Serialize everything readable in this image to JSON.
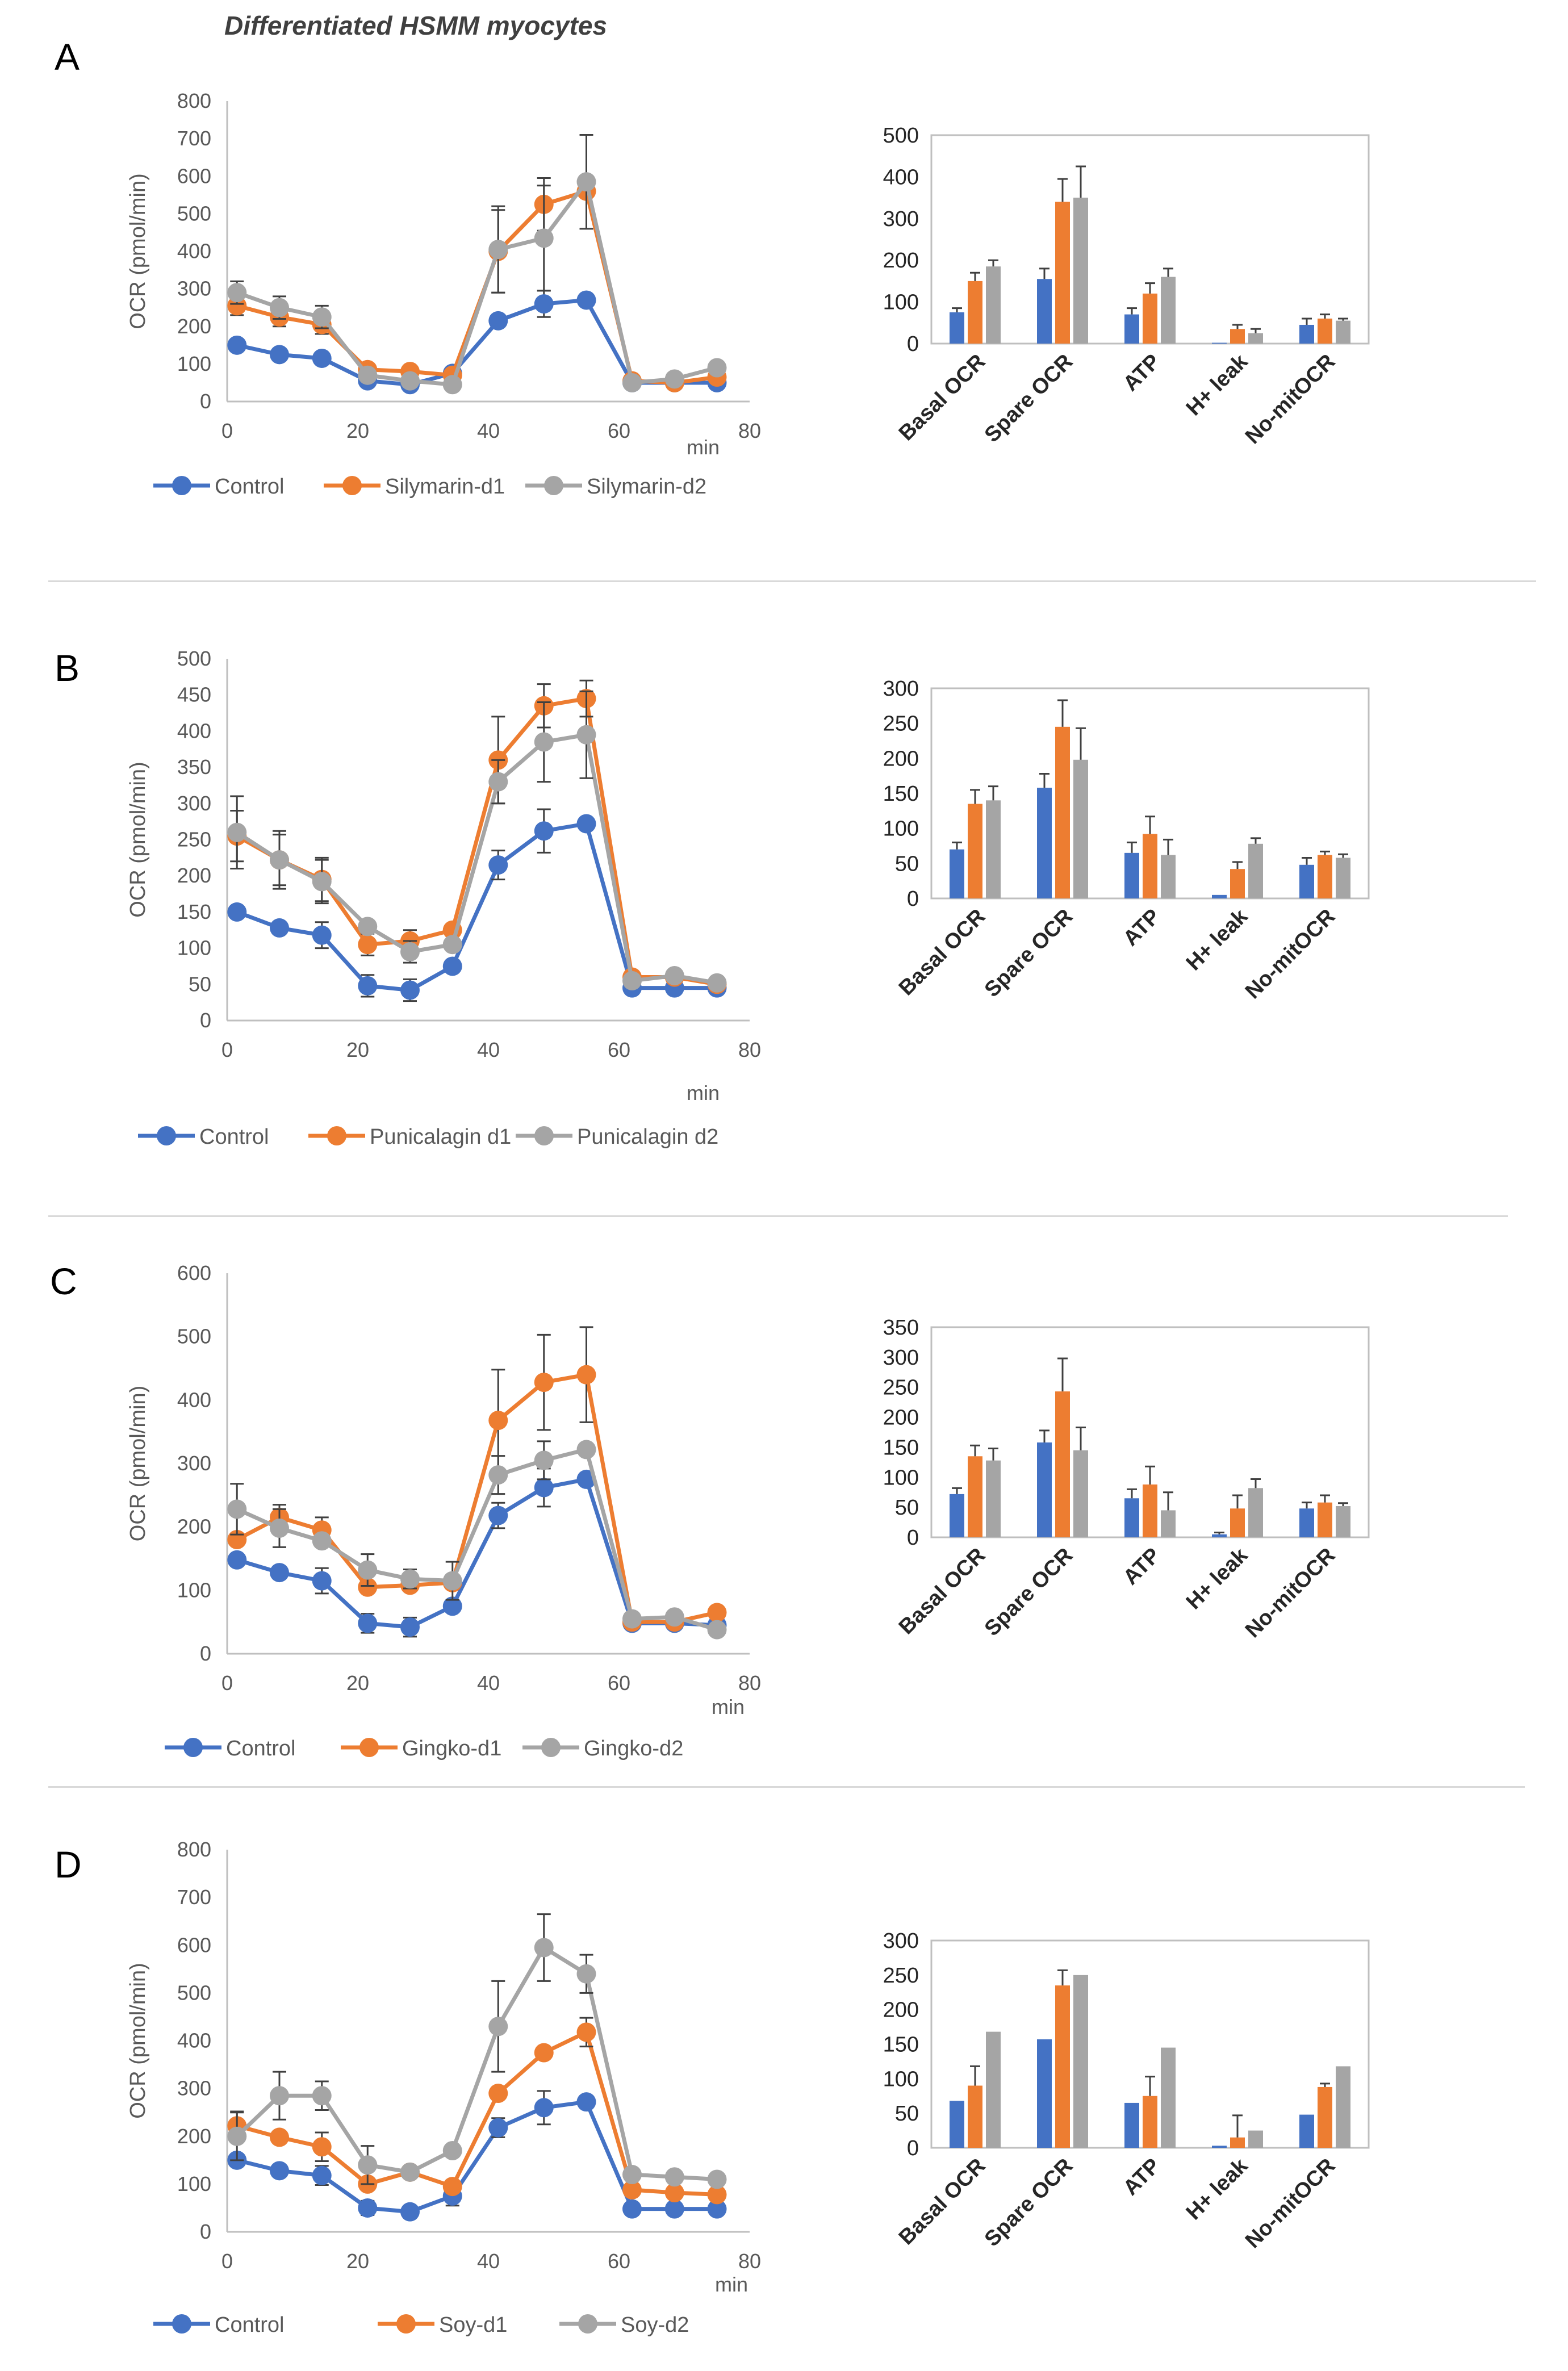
{
  "figure_title": "Differentiated HSMM myocytes",
  "colors": {
    "control": "#4472C4",
    "d1": "#ED7D31",
    "d2": "#A5A5A5",
    "axis": "#BFBFBF",
    "text": "#595959"
  },
  "chart_data": [
    {
      "panel": "A",
      "type": "line",
      "title": "",
      "ylabel": "OCR (pmol/min)",
      "xlabel": "min",
      "xlim": [
        0,
        80
      ],
      "ylim": [
        0,
        800
      ],
      "xticks": [
        0,
        20,
        40,
        60,
        80
      ],
      "yticks": [
        0,
        100,
        200,
        300,
        400,
        500,
        600,
        700,
        800
      ],
      "x": [
        1.5,
        8,
        14.5,
        21.5,
        28,
        34.5,
        41.5,
        48.5,
        55,
        62,
        68.5,
        75
      ],
      "series": [
        {
          "name": "Control",
          "values": [
            150,
            125,
            115,
            55,
            45,
            75,
            215,
            260,
            270,
            50,
            50,
            50
          ],
          "errors": [
            0,
            0,
            0,
            0,
            0,
            0,
            0,
            35,
            0,
            0,
            0,
            0
          ]
        },
        {
          "name": "Silymarin-d1",
          "values": [
            255,
            225,
            205,
            85,
            80,
            70,
            400,
            525,
            560,
            55,
            50,
            65
          ],
          "errors": [
            25,
            25,
            25,
            15,
            0,
            0,
            110,
            70,
            0,
            0,
            0,
            0
          ]
        },
        {
          "name": "Silymarin-d2",
          "values": [
            290,
            250,
            225,
            70,
            55,
            45,
            405,
            435,
            585,
            50,
            60,
            90
          ],
          "errors": [
            30,
            30,
            30,
            15,
            0,
            0,
            115,
            140,
            125,
            0,
            0,
            0
          ]
        }
      ],
      "legend": [
        "Control",
        "Silymarin-d1",
        "Silymarin-d2"
      ]
    },
    {
      "panel": "A",
      "type": "bar",
      "categories": [
        "Basal OCR",
        "Spare OCR",
        "ATP",
        "H+ leak",
        "No-mitOCR"
      ],
      "ylim": [
        0,
        500
      ],
      "yticks": [
        0,
        100,
        200,
        300,
        400,
        500
      ],
      "series": [
        {
          "name": "Control",
          "values": [
            75,
            155,
            70,
            2,
            45
          ],
          "errors": [
            10,
            25,
            15,
            0,
            15
          ]
        },
        {
          "name": "Silymarin-d1",
          "values": [
            150,
            340,
            120,
            35,
            60
          ],
          "errors": [
            20,
            55,
            25,
            10,
            10
          ]
        },
        {
          "name": "Silymarin-d2",
          "values": [
            185,
            350,
            160,
            25,
            55
          ],
          "errors": [
            15,
            75,
            20,
            10,
            5
          ]
        }
      ]
    },
    {
      "panel": "B",
      "type": "line",
      "title": "",
      "ylabel": "OCR (pmol/min)",
      "xlabel": "min",
      "xlim": [
        0,
        80
      ],
      "ylim": [
        0,
        500
      ],
      "xticks": [
        0,
        20,
        40,
        60,
        80
      ],
      "yticks": [
        0,
        50,
        100,
        150,
        200,
        250,
        300,
        350,
        400,
        450,
        500
      ],
      "x": [
        1.5,
        8,
        14.5,
        21.5,
        28,
        34.5,
        41.5,
        48.5,
        55,
        62,
        68.5,
        75
      ],
      "series": [
        {
          "name": "Control",
          "values": [
            150,
            128,
            118,
            48,
            42,
            75,
            215,
            262,
            272,
            45,
            45,
            45
          ],
          "errors": [
            0,
            0,
            18,
            15,
            15,
            0,
            20,
            30,
            0,
            0,
            0,
            0
          ]
        },
        {
          "name": "Punicalagin d1",
          "values": [
            255,
            222,
            195,
            105,
            110,
            125,
            360,
            435,
            445,
            60,
            60,
            50
          ],
          "errors": [
            35,
            35,
            30,
            15,
            15,
            0,
            60,
            30,
            25,
            0,
            0,
            0
          ]
        },
        {
          "name": "Punicalagin d2",
          "values": [
            260,
            222,
            192,
            130,
            95,
            105,
            330,
            385,
            395,
            55,
            62,
            52
          ],
          "errors": [
            50,
            40,
            30,
            0,
            15,
            0,
            30,
            55,
            60,
            0,
            0,
            0
          ]
        }
      ],
      "legend": [
        "Control",
        "Punicalagin d1",
        "Punicalagin d2"
      ]
    },
    {
      "panel": "B",
      "type": "bar",
      "categories": [
        "Basal OCR",
        "Spare OCR",
        "ATP",
        "H+ leak",
        "No-mitOCR"
      ],
      "ylim": [
        0,
        300
      ],
      "yticks": [
        0,
        50,
        100,
        150,
        200,
        250,
        300
      ],
      "series": [
        {
          "name": "Control",
          "values": [
            70,
            158,
            65,
            5,
            48
          ],
          "errors": [
            10,
            20,
            15,
            0,
            10
          ]
        },
        {
          "name": "Punicalagin d1",
          "values": [
            135,
            245,
            92,
            42,
            62
          ],
          "errors": [
            20,
            38,
            25,
            10,
            5
          ]
        },
        {
          "name": "Punicalagin d2",
          "values": [
            140,
            198,
            62,
            78,
            58
          ],
          "errors": [
            20,
            45,
            22,
            8,
            5
          ]
        }
      ]
    },
    {
      "panel": "C",
      "type": "line",
      "title": "",
      "ylabel": "OCR (pmol/min)",
      "xlabel": "min",
      "xlim": [
        0,
        80
      ],
      "ylim": [
        0,
        600
      ],
      "xticks": [
        0,
        20,
        40,
        60,
        80
      ],
      "yticks": [
        0,
        100,
        200,
        300,
        400,
        500,
        600
      ],
      "x": [
        1.5,
        8,
        14.5,
        21.5,
        28,
        34.5,
        41.5,
        48.5,
        55,
        62,
        68.5,
        75
      ],
      "series": [
        {
          "name": "Control",
          "values": [
            148,
            128,
            115,
            48,
            42,
            75,
            218,
            262,
            275,
            48,
            48,
            45
          ],
          "errors": [
            0,
            0,
            20,
            15,
            15,
            0,
            20,
            30,
            0,
            0,
            0,
            0
          ]
        },
        {
          "name": "Gingko-d1",
          "values": [
            180,
            215,
            195,
            105,
            108,
            112,
            368,
            428,
            440,
            50,
            50,
            65
          ],
          "errors": [
            0,
            20,
            20,
            0,
            0,
            0,
            80,
            75,
            75,
            0,
            0,
            0
          ]
        },
        {
          "name": "Gingko-d2",
          "values": [
            228,
            198,
            178,
            132,
            118,
            115,
            282,
            305,
            322,
            55,
            58,
            38
          ],
          "errors": [
            40,
            30,
            0,
            25,
            15,
            30,
            30,
            30,
            0,
            0,
            0,
            0
          ]
        }
      ],
      "legend": [
        "Control",
        "Gingko-d1",
        "Gingko-d2"
      ]
    },
    {
      "panel": "C",
      "type": "bar",
      "categories": [
        "Basal OCR",
        "Spare OCR",
        "ATP",
        "H+ leak",
        "No-mitOCR"
      ],
      "ylim": [
        0,
        350
      ],
      "yticks": [
        0,
        50,
        100,
        150,
        200,
        250,
        300,
        350
      ],
      "series": [
        {
          "name": "Control",
          "values": [
            72,
            158,
            65,
            5,
            48
          ],
          "errors": [
            10,
            20,
            15,
            3,
            10
          ]
        },
        {
          "name": "Gingko-d1",
          "values": [
            135,
            243,
            88,
            48,
            58
          ],
          "errors": [
            18,
            55,
            30,
            22,
            12
          ]
        },
        {
          "name": "Gingko-d2",
          "values": [
            128,
            145,
            45,
            82,
            52
          ],
          "errors": [
            20,
            38,
            30,
            15,
            5
          ]
        }
      ]
    },
    {
      "panel": "D",
      "type": "line",
      "title": "",
      "ylabel": "OCR (pmol/min)",
      "xlabel": "min",
      "xlim": [
        0,
        80
      ],
      "ylim": [
        0,
        800
      ],
      "xticks": [
        0,
        20,
        40,
        60,
        80
      ],
      "yticks": [
        0,
        100,
        200,
        300,
        400,
        500,
        600,
        700,
        800
      ],
      "x": [
        1.5,
        8,
        14.5,
        21.5,
        28,
        34.5,
        41.5,
        48.5,
        55,
        62,
        68.5,
        75
      ],
      "series": [
        {
          "name": "Control",
          "values": [
            150,
            128,
            118,
            50,
            42,
            75,
            218,
            260,
            272,
            48,
            48,
            48
          ],
          "errors": [
            0,
            0,
            20,
            15,
            0,
            20,
            20,
            35,
            0,
            0,
            0,
            0
          ]
        },
        {
          "name": "Soy-d1",
          "values": [
            222,
            198,
            178,
            100,
            125,
            95,
            290,
            375,
            418,
            88,
            82,
            78
          ],
          "errors": [
            30,
            0,
            30,
            0,
            0,
            0,
            0,
            0,
            30,
            0,
            0,
            0
          ]
        },
        {
          "name": "Soy-d2",
          "values": [
            200,
            285,
            285,
            140,
            125,
            170,
            430,
            595,
            540,
            120,
            115,
            110
          ],
          "errors": [
            50,
            50,
            30,
            40,
            0,
            0,
            95,
            70,
            40,
            0,
            0,
            0
          ]
        }
      ],
      "legend": [
        "Control",
        "Soy-d1",
        "Soy-d2"
      ]
    },
    {
      "panel": "D",
      "type": "bar",
      "categories": [
        "Basal OCR",
        "Spare OCR",
        "ATP",
        "H+ leak",
        "No-mitOCR"
      ],
      "ylim": [
        0,
        300
      ],
      "yticks": [
        0,
        50,
        100,
        150,
        200,
        250,
        300
      ],
      "series": [
        {
          "name": "Control",
          "values": [
            68,
            157,
            65,
            3,
            48
          ],
          "errors": [
            0,
            0,
            0,
            0,
            0
          ]
        },
        {
          "name": "Soy-d1",
          "values": [
            90,
            235,
            75,
            15,
            88
          ],
          "errors": [
            28,
            22,
            28,
            32,
            5
          ]
        },
        {
          "name": "Soy-d2",
          "values": [
            168,
            250,
            145,
            25,
            118
          ],
          "errors": [
            0,
            0,
            0,
            0,
            0
          ]
        }
      ]
    }
  ]
}
